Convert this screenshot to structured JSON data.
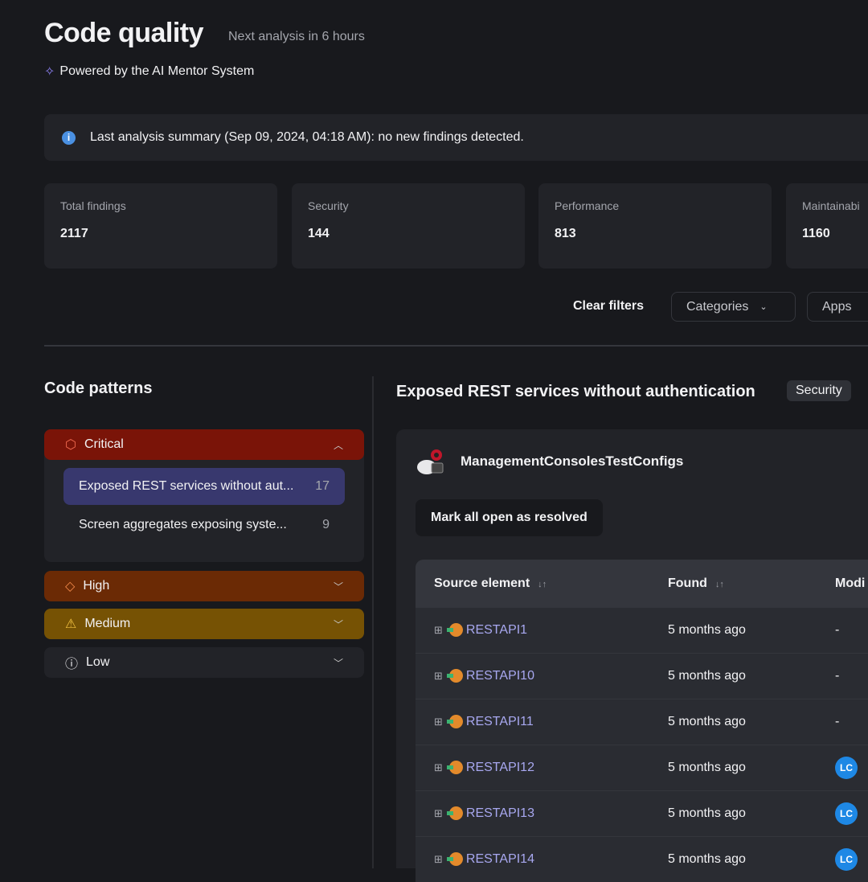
{
  "header": {
    "title": "Code quality",
    "next_analysis": "Next analysis in 6 hours",
    "powered_by": "Powered by the AI Mentor System"
  },
  "banner": {
    "text": "Last analysis summary (Sep 09, 2024, 04:18 AM): no new findings detected."
  },
  "stats": [
    {
      "label": "Total findings",
      "value": "2117"
    },
    {
      "label": "Security",
      "value": "144"
    },
    {
      "label": "Performance",
      "value": "813"
    },
    {
      "label": "Maintainabi",
      "value": "1160"
    }
  ],
  "filters": {
    "clear": "Clear filters",
    "categories": "Categories",
    "apps": "Apps"
  },
  "patterns": {
    "title": "Code patterns",
    "severities": [
      {
        "label": "Critical",
        "color": "#7a1408"
      },
      {
        "label": "High",
        "color": "#6b2a05"
      },
      {
        "label": "Medium",
        "color": "#765204"
      },
      {
        "label": "Low",
        "color": "#222328"
      }
    ],
    "critical_items": [
      {
        "label": "Exposed REST services without aut...",
        "count": "17"
      },
      {
        "label": "Screen aggregates exposing syste...",
        "count": "9"
      }
    ]
  },
  "detail": {
    "title": "Exposed REST services without authentication",
    "tag": "Security",
    "app": "ManagementConsolesTestConfigs",
    "mark_button": "Mark all open as resolved",
    "columns": [
      "Source element",
      "Found",
      "Modi"
    ],
    "rows": [
      {
        "name": "RESTAPI1",
        "found": "5 months ago",
        "mod": "-"
      },
      {
        "name": "RESTAPI10",
        "found": "5 months ago",
        "mod": "-"
      },
      {
        "name": "RESTAPI11",
        "found": "5 months ago",
        "mod": "-"
      },
      {
        "name": "RESTAPI12",
        "found": "5 months ago",
        "mod": "LC"
      },
      {
        "name": "RESTAPI13",
        "found": "5 months ago",
        "mod": "LC"
      },
      {
        "name": "RESTAPI14",
        "found": "5 months ago",
        "mod": "LC"
      }
    ]
  }
}
